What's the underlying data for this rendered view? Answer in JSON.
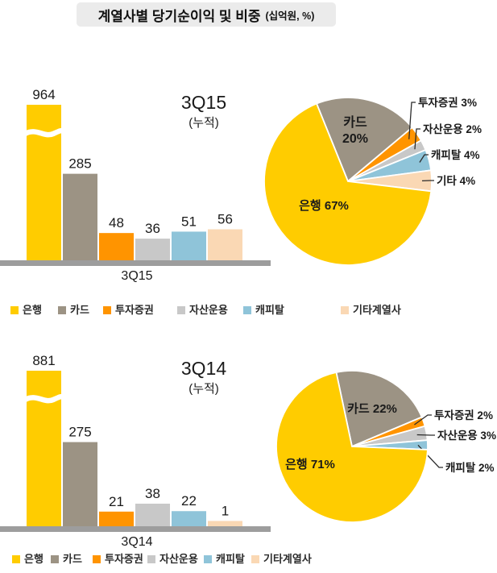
{
  "title": {
    "text": "계열사별 당기순이익 및 비중",
    "unit": "(십억원, %)"
  },
  "colors": {
    "은행": "#FFCC00",
    "카드": "#9C9384",
    "투자증권": "#FF9400",
    "자산운용": "#C8C8C8",
    "캐피탈": "#8FC4D9",
    "기타계열사": "#FAD8B4",
    "기타": "#FAD8B4",
    "axis": "#9D9D9D",
    "text": "#1A1A1A"
  },
  "legend": [
    "은행",
    "카드",
    "투자증권",
    "자산운용",
    "캐피탈",
    "기타계열사"
  ],
  "chart_data": [
    {
      "type": "bar",
      "title": "3Q15",
      "subtitle": "(누적)",
      "xlabel": "3Q15",
      "value_unit": "십억원",
      "categories": [
        "은행",
        "카드",
        "투자증권",
        "자산운용",
        "캐피탈",
        "기타계열사"
      ],
      "values": [
        964,
        285,
        48,
        36,
        51,
        56
      ],
      "broken_axis_bars": [
        "은행"
      ],
      "grid": false
    },
    {
      "type": "pie",
      "period": "3Q15",
      "value_unit": "%",
      "clockwise_start_deg": -22,
      "slices": [
        {
          "label": "카드",
          "pct": 20,
          "label_pos": "inside"
        },
        {
          "label": "투자증권",
          "pct": 3,
          "label_pos": "outside"
        },
        {
          "label": "자산운용",
          "pct": 2,
          "label_pos": "outside"
        },
        {
          "label": "캐피탈",
          "pct": 4,
          "label_pos": "outside"
        },
        {
          "label": "기타",
          "pct": 4,
          "label_pos": "outside"
        },
        {
          "label": "은행",
          "pct": 67,
          "label_pos": "inside"
        }
      ]
    },
    {
      "type": "bar",
      "title": "3Q14",
      "subtitle": "(누적)",
      "xlabel": "3Q14",
      "value_unit": "십억원",
      "categories": [
        "은행",
        "카드",
        "투자증권",
        "자산운용",
        "캐피탈",
        "기타계열사"
      ],
      "values": [
        881,
        275,
        21,
        38,
        22,
        1
      ],
      "broken_axis_bars": [
        "은행"
      ],
      "grid": false
    },
    {
      "type": "pie",
      "period": "3Q14",
      "value_unit": "%",
      "clockwise_start_deg": -12,
      "slices": [
        {
          "label": "카드",
          "pct": 22,
          "label_pos": "inside"
        },
        {
          "label": "투자증권",
          "pct": 2,
          "label_pos": "outside"
        },
        {
          "label": "자산운용",
          "pct": 3,
          "label_pos": "outside"
        },
        {
          "label": "캐피탈",
          "pct": 2,
          "label_pos": "outside"
        },
        {
          "label": "은행",
          "pct": 71,
          "label_pos": "inside"
        }
      ]
    }
  ]
}
